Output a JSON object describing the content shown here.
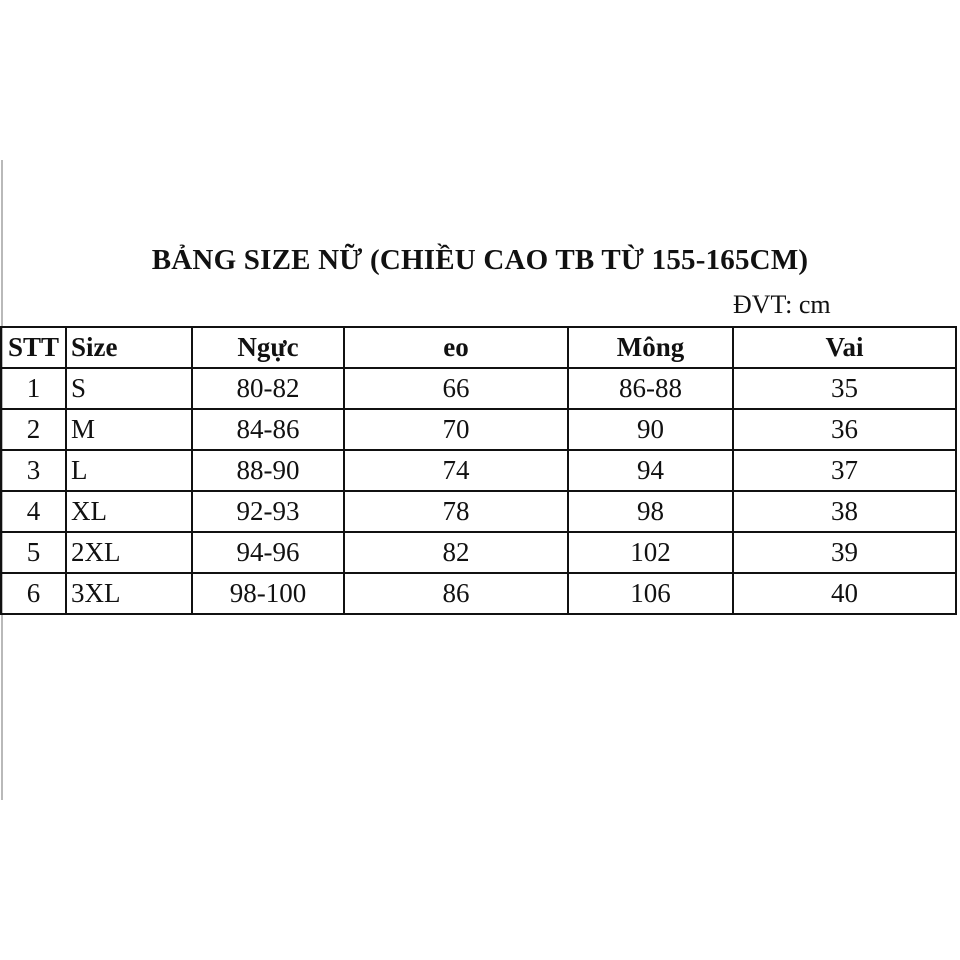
{
  "title": "BẢNG SIZE NỮ (CHIỀU CAO TB TỪ 155-165CM)",
  "unit": "ĐVT: cm",
  "table": {
    "headers": [
      "STT",
      "Size",
      "Ngực",
      "eo",
      "Mông",
      "Vai"
    ],
    "rows": [
      [
        "1",
        "S",
        "80-82",
        "66",
        "86-88",
        "35"
      ],
      [
        "2",
        "M",
        "84-86",
        "70",
        "90",
        "36"
      ],
      [
        "3",
        "L",
        "88-90",
        "74",
        "94",
        "37"
      ],
      [
        "4",
        "XL",
        "92-93",
        "78",
        "98",
        "38"
      ],
      [
        "5",
        "2XL",
        "94-96",
        "82",
        "102",
        "39"
      ],
      [
        "6",
        "3XL",
        "98-100",
        "86",
        "106",
        "40"
      ]
    ]
  }
}
